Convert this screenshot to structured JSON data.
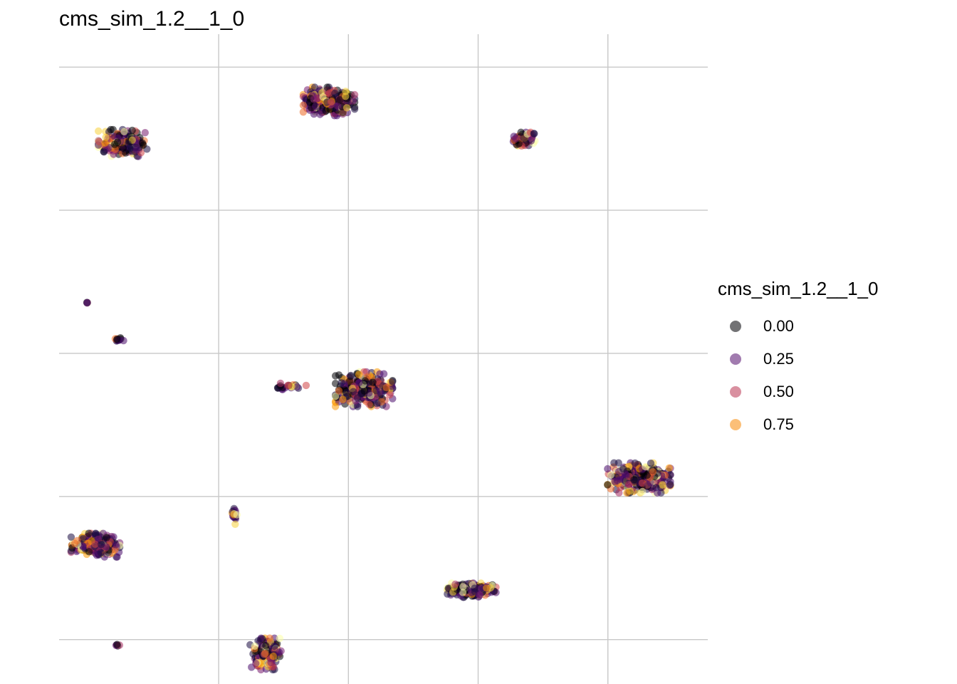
{
  "chart_data": {
    "type": "scatter",
    "title": "cms_sim_1.2__1_0",
    "xlabel": "",
    "ylabel": "",
    "xlim": [
      -2.23,
      2.77
    ],
    "ylim": [
      -4.62,
      4.46
    ],
    "grid": true,
    "legend": {
      "title": "cms_sim_1.2__1_0",
      "placement": "right",
      "entries": [
        {
          "label": "0.00",
          "color": "#000004"
        },
        {
          "label": "0.25",
          "color": "#56106E"
        },
        {
          "label": "0.50",
          "color": "#BB3754"
        },
        {
          "label": "0.75",
          "color": "#F98C0A"
        }
      ]
    },
    "colormap": [
      "#000004",
      "#1B0C41",
      "#4A0C6B",
      "#781C6D",
      "#A52C60",
      "#CF4446",
      "#ED6925",
      "#FB9B06",
      "#F7D13D",
      "#FCFFA4"
    ],
    "clusters": [
      {
        "x": -1.74,
        "y": 2.94,
        "sd_x": 0.085,
        "sd_y": 0.085,
        "n": 260,
        "mix": 0.4
      },
      {
        "x": -0.15,
        "y": 3.52,
        "sd_x": 0.09,
        "sd_y": 0.09,
        "n": 320,
        "mix": 0.4
      },
      {
        "x": 1.35,
        "y": 2.99,
        "sd_x": 0.04,
        "sd_y": 0.045,
        "n": 80,
        "mix": 0.45
      },
      {
        "x": -2.01,
        "y": 0.71,
        "sd_x": 0.006,
        "sd_y": 0.006,
        "n": 4,
        "mix": 0.0
      },
      {
        "x": -1.77,
        "y": 0.19,
        "sd_x": 0.018,
        "sd_y": 0.012,
        "n": 15,
        "mix": 0.15
      },
      {
        "x": -0.48,
        "y": -0.47,
        "sd_x": 0.07,
        "sd_y": 0.025,
        "n": 25,
        "mix": 0.3
      },
      {
        "x": 0.12,
        "y": -0.5,
        "sd_x": 0.1,
        "sd_y": 0.11,
        "n": 320,
        "mix": 0.45
      },
      {
        "x": 2.24,
        "y": -1.74,
        "sd_x": 0.11,
        "sd_y": 0.095,
        "n": 380,
        "mix": 0.25
      },
      {
        "x": -0.88,
        "y": -2.28,
        "sd_x": 0.012,
        "sd_y": 0.055,
        "n": 18,
        "mix": 0.25
      },
      {
        "x": -1.95,
        "y": -2.68,
        "sd_x": 0.085,
        "sd_y": 0.075,
        "n": 260,
        "mix": 0.5
      },
      {
        "x": 0.95,
        "y": -3.31,
        "sd_x": 0.085,
        "sd_y": 0.045,
        "n": 180,
        "mix": 0.45
      },
      {
        "x": -1.78,
        "y": -4.07,
        "sd_x": 0.008,
        "sd_y": 0.008,
        "n": 5,
        "mix": 0.0
      },
      {
        "x": -0.64,
        "y": -4.2,
        "sd_x": 0.055,
        "sd_y": 0.1,
        "n": 170,
        "mix": 0.5
      }
    ]
  }
}
